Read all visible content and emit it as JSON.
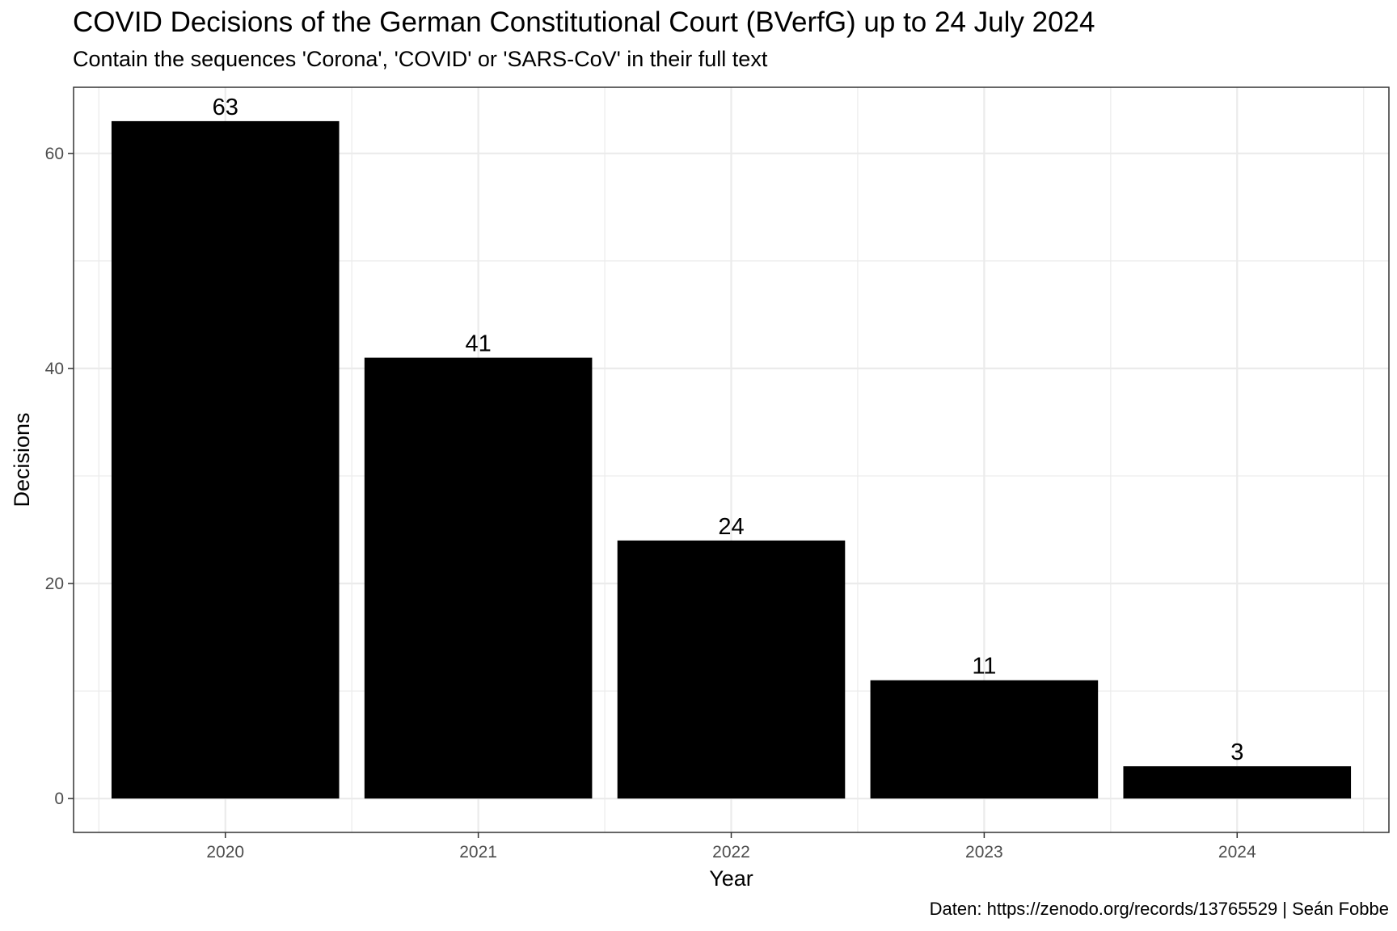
{
  "chart_data": {
    "type": "bar",
    "title": "COVID Decisions of the German Constitutional Court (BVerfG) up to 24 July 2024",
    "subtitle": "Contain the sequences 'Corona', 'COVID' or 'SARS-CoV' in their full text",
    "caption": "Daten: https://zenodo.org/records/13765529 | Seán Fobbe",
    "xlabel": "Year",
    "ylabel": "Decisions",
    "categories": [
      "2020",
      "2021",
      "2022",
      "2023",
      "2024"
    ],
    "values": [
      63,
      41,
      24,
      11,
      3
    ],
    "data_labels": [
      "63",
      "41",
      "24",
      "11",
      "3"
    ],
    "y_ticks": [
      0,
      20,
      40,
      60
    ],
    "y_tick_labels": [
      "0",
      "20",
      "40",
      "60"
    ],
    "ylim": [
      -3.15,
      66.15
    ],
    "grid": true,
    "bar_color": "#000000",
    "gridline_color": "#ebebeb",
    "panel_border_color": "#333333"
  }
}
